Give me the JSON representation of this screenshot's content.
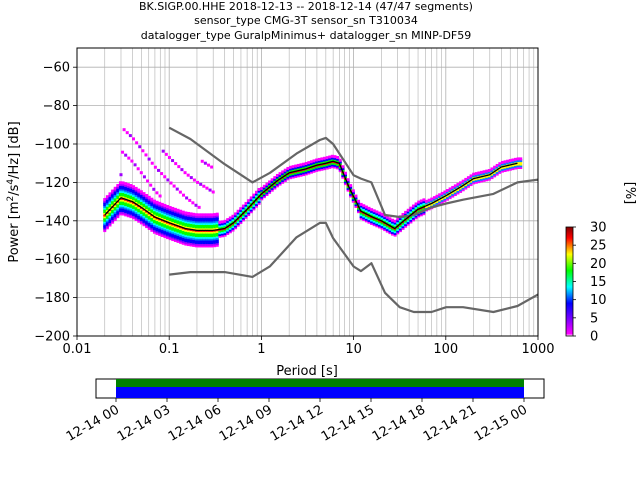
{
  "chart_data": {
    "type": "heatmap",
    "title_lines": [
      "BK.SIGP.00.HHE   2018-12-13 -- 2018-12-14  (47/47 segments)",
      "sensor_type CMG-3T sensor_sn T310034",
      "datalogger_type GuralpMinimus+ datalogger_sn MINP-DF59"
    ],
    "xlabel": "Period [s]",
    "ylabel_parts": [
      "Power [m",
      "2",
      "/s",
      "4",
      "/Hz] [dB]"
    ],
    "x_scale": "log",
    "xlim": [
      0.01,
      1000
    ],
    "ylim": [
      -200,
      -50
    ],
    "x_ticks": [
      0.01,
      0.1,
      1,
      10,
      100,
      1000
    ],
    "x_tick_labels": [
      "0.01",
      "0.1",
      "1",
      "10",
      "100",
      "1000"
    ],
    "y_ticks": [
      -200,
      -180,
      -160,
      -140,
      -120,
      -100,
      -80,
      -60
    ],
    "y_tick_labels": [
      "−200",
      "−180",
      "−160",
      "−140",
      "−120",
      "−100",
      "−80",
      "−60"
    ],
    "grid": true,
    "colorbar": {
      "label": "[%]",
      "range": [
        0,
        30
      ],
      "ticks": [
        0,
        5,
        10,
        15,
        20,
        25,
        30
      ],
      "tick_labels": [
        "0",
        "5",
        "10",
        "15",
        "20",
        "25",
        "30"
      ]
    },
    "series": [
      {
        "role": "noise-model-high",
        "x": [
          0.1,
          0.17,
          0.4,
          0.8,
          1.24,
          2.4,
          4.3,
          5.0,
          6.0,
          10.0,
          12.0,
          15.6,
          21.9,
          31.6,
          45.0,
          70.0,
          101.0,
          154.0,
          328.0,
          600.0,
          10000.0
        ],
        "y": [
          -91.5,
          -97.4,
          -110.5,
          -120.0,
          -115.0,
          -105.0,
          -97.9,
          -96.8,
          -100.0,
          -116.3,
          -118.0,
          -120.0,
          -137.0,
          -138.0,
          -137.0,
          -133.0,
          -131.0,
          -129.0,
          -126.0,
          -120.0,
          -112.0
        ]
      },
      {
        "role": "noise-model-low",
        "x": [
          0.1,
          0.17,
          0.4,
          0.8,
          1.24,
          2.4,
          4.3,
          5.0,
          6.0,
          10.0,
          12.0,
          15.6,
          21.9,
          31.6,
          45.0,
          70.0,
          101.0,
          154.0,
          328.0,
          600.0,
          10000.0
        ],
        "y": [
          -168.0,
          -166.7,
          -166.7,
          -169.2,
          -163.7,
          -148.6,
          -141.1,
          -141.1,
          -149.0,
          -163.8,
          -166.2,
          -162.1,
          -177.5,
          -185.0,
          -187.5,
          -187.5,
          -185.0,
          -185.0,
          -187.5,
          -184.4,
          -151.5
        ]
      },
      {
        "role": "mean-psd",
        "x": [
          0.02,
          0.025,
          0.03,
          0.04,
          0.05,
          0.07,
          0.1,
          0.15,
          0.2,
          0.3,
          0.4,
          0.5,
          0.7,
          1.0,
          1.5,
          2.0,
          3.0,
          4.0,
          5.0,
          6.0,
          7.0,
          9.0,
          12.0,
          16.0,
          20.0,
          28.0,
          35.0,
          50.0,
          70.0,
          100.0,
          150.0,
          200.0,
          300.0,
          400.0,
          600.0
        ],
        "y": [
          -137.0,
          -132.0,
          -128.0,
          -130.0,
          -133.0,
          -138.0,
          -141.0,
          -144.0,
          -145.0,
          -145.0,
          -144.0,
          -141.0,
          -134.0,
          -126.0,
          -119.0,
          -115.0,
          -113.0,
          -111.0,
          -110.0,
          -109.0,
          -110.0,
          -123.0,
          -135.0,
          -138.0,
          -140.0,
          -144.0,
          -140.0,
          -134.0,
          -131.0,
          -127.0,
          -122.0,
          -118.0,
          -116.0,
          -112.0,
          -110.0
        ]
      }
    ],
    "coverage": {
      "tick_labels": [
        "12-14 00",
        "12-14 03",
        "12-14 06",
        "12-14 09",
        "12-14 12",
        "12-14 15",
        "12-14 18",
        "12-14 21",
        "12-15 00"
      ],
      "bars": [
        {
          "role": "data",
          "color": "#008000"
        },
        {
          "role": "psd",
          "color": "#0000ff"
        }
      ]
    }
  }
}
